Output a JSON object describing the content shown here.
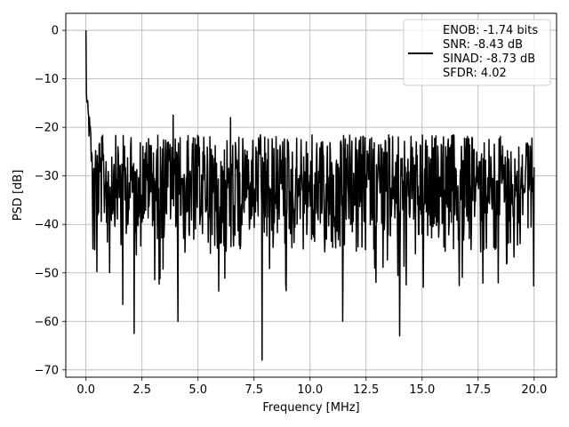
{
  "chart_data": {
    "type": "line",
    "title": "",
    "xlabel": "Frequency [MHz]",
    "ylabel": "PSD [dB]",
    "xlim": [
      -0.9,
      21.0
    ],
    "ylim": [
      -71.5,
      3.5
    ],
    "xticks": [
      0.0,
      2.5,
      5.0,
      7.5,
      10.0,
      12.5,
      15.0,
      17.5,
      20.0
    ],
    "xtick_labels": [
      "0.0",
      "2.5",
      "5.0",
      "7.5",
      "10.0",
      "12.5",
      "15.0",
      "17.5",
      "20.0"
    ],
    "yticks": [
      0,
      -10,
      -20,
      -30,
      -40,
      -50,
      -60,
      -70
    ],
    "ytick_labels": [
      "0",
      "−10",
      "−20",
      "−30",
      "−40",
      "−50",
      "−60",
      "−70"
    ],
    "grid": true,
    "legend_position": "top-right",
    "series": [
      {
        "name": "ENOB: -1.74 bits\nSNR: -8.43 dB\nSINAD: -8.73 dB\nSFDR: 4.02",
        "color": "#000000",
        "x_range": [
          0.0,
          20.0
        ],
        "points": 1024,
        "peak": {
          "x": 0.0,
          "y": 0.0
        },
        "noise_floor_mean": -31,
        "noise_upper_envelope": -22,
        "noise_lower_envelope": -45,
        "notable_dips": [
          {
            "x": 1.65,
            "y": -56.5
          },
          {
            "x": 2.15,
            "y": -62.5
          },
          {
            "x": 4.1,
            "y": -60.0
          },
          {
            "x": 7.85,
            "y": -68.0
          },
          {
            "x": 11.45,
            "y": -60.0
          },
          {
            "x": 14.0,
            "y": -63.0
          }
        ],
        "notable_peaks": [
          {
            "x": 6.45,
            "y": -18.0
          },
          {
            "x": 3.9,
            "y": -17.5
          }
        ]
      }
    ],
    "legend": {
      "lines": [
        "ENOB: -1.74 bits",
        "SNR: -8.43 dB",
        "SINAD: -8.73 dB",
        "SFDR: 4.02"
      ]
    }
  }
}
